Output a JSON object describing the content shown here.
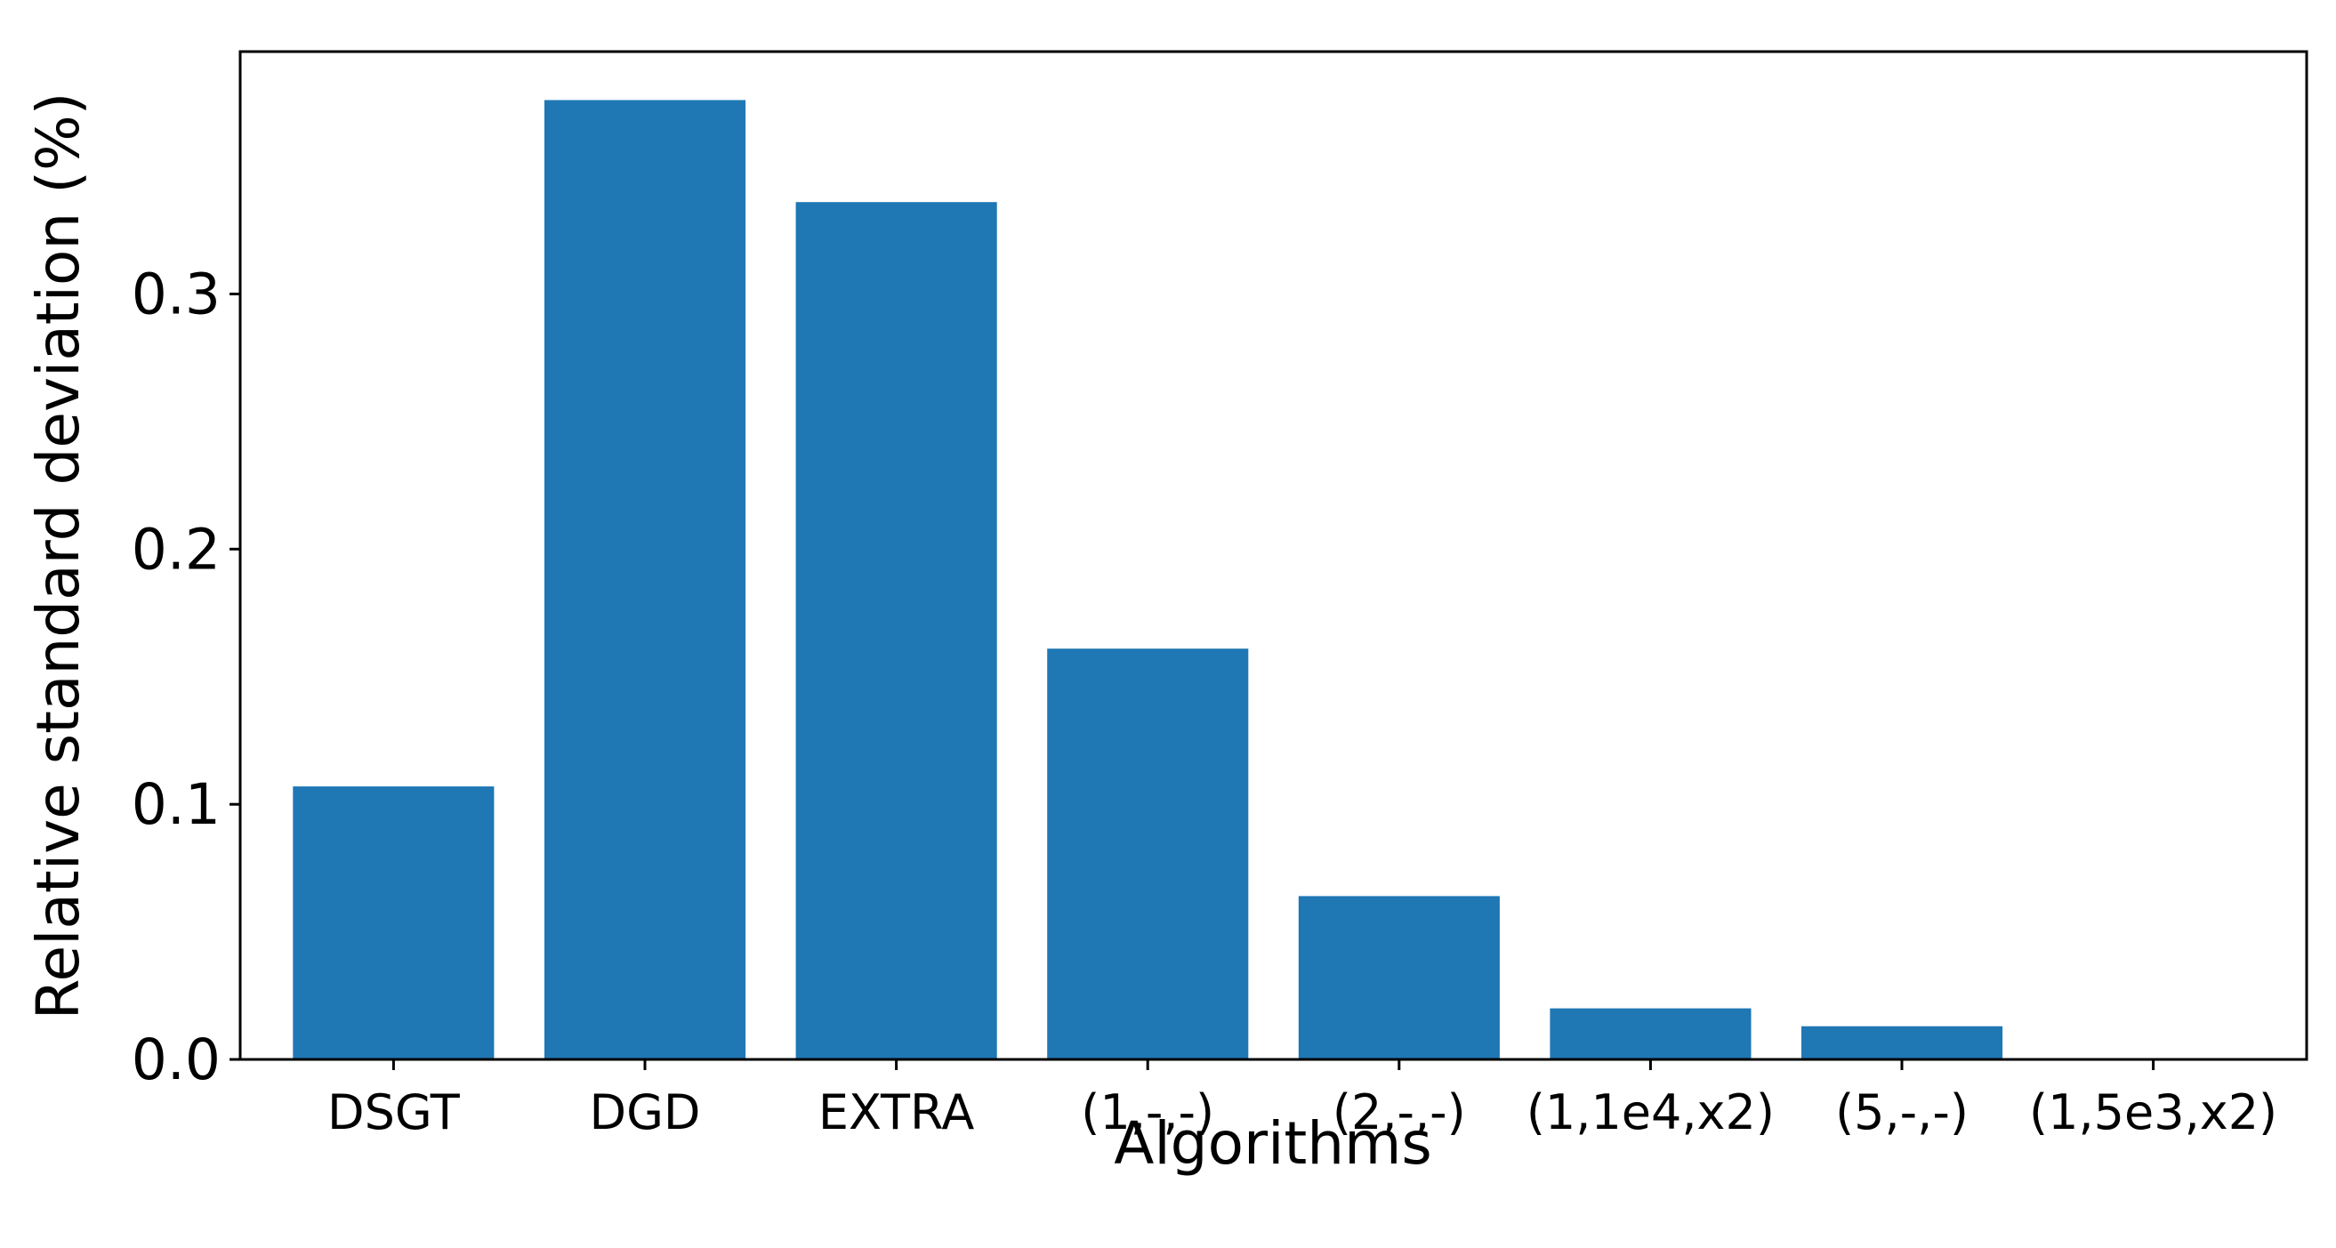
{
  "chart_data": {
    "type": "bar",
    "title": "",
    "xlabel": "Algorithms",
    "ylabel": "Relative standard deviation (%)",
    "categories": [
      "DSGT",
      "DGD",
      "EXTRA",
      "(1,-,-)",
      "(2,-,-)",
      "(1,1e4,x2)",
      "(5,-,-)",
      "(1,5e3,x2)"
    ],
    "values": [
      0.107,
      0.376,
      0.336,
      0.161,
      0.064,
      0.02,
      0.013,
      0.0
    ],
    "ylim": [
      0,
      0.395
    ],
    "yticks": [
      0.0,
      0.1,
      0.2,
      0.3
    ],
    "ytick_labels": [
      "0.0",
      "0.1",
      "0.2",
      "0.3"
    ],
    "bar_color": "#1f77b4",
    "grid": false,
    "legend": "none"
  }
}
